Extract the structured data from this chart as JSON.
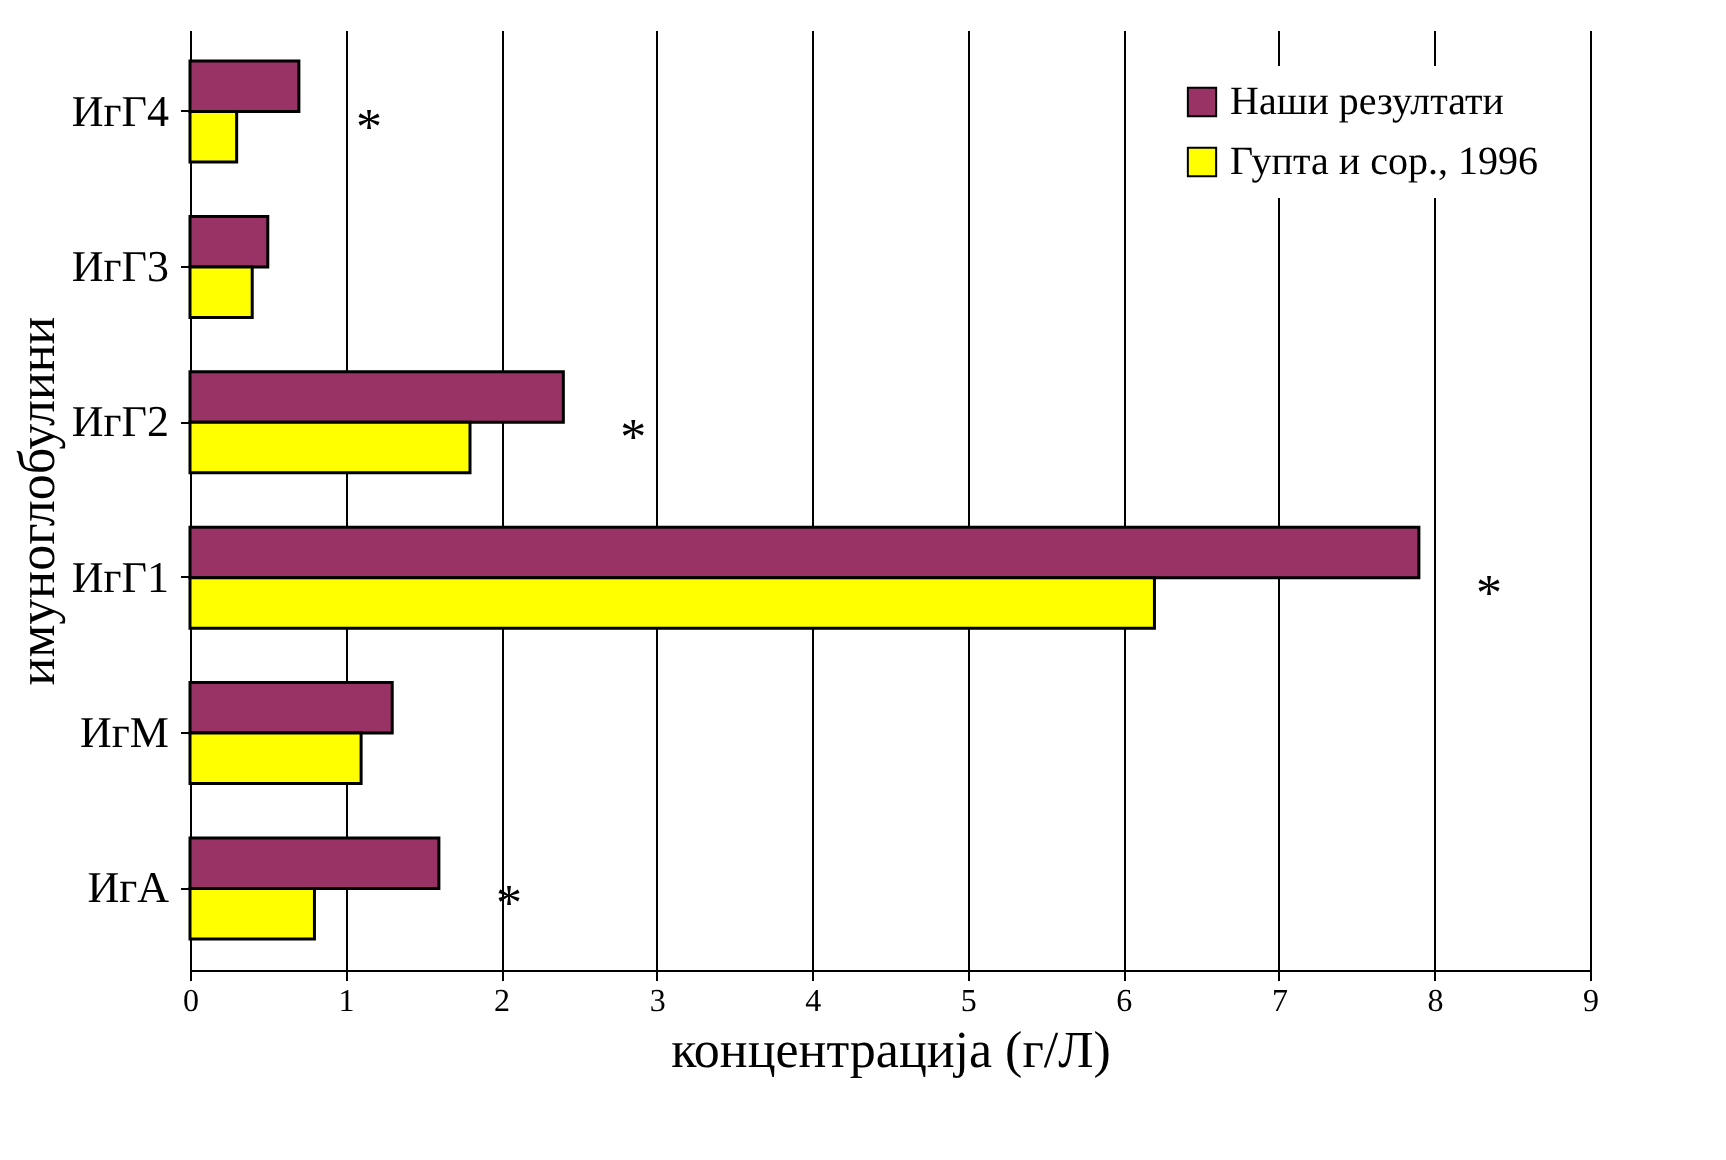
{
  "chart_data": {
    "type": "bar",
    "orientation": "horizontal",
    "xlabel": "концентрација (г/Л)",
    "ylabel": "имуноглобулини",
    "categories": [
      "ИгГ4",
      "ИгГ3",
      "ИгГ2",
      "ИгГ1",
      "ИгМ",
      "ИгА"
    ],
    "series": [
      {
        "name": "Наши резултати",
        "color": "#993366",
        "values": [
          0.7,
          0.5,
          2.4,
          7.9,
          1.3,
          1.6
        ]
      },
      {
        "name": "Гупта и сор., 1996",
        "color": "#ffff00",
        "values": [
          0.3,
          0.4,
          1.8,
          6.2,
          1.1,
          0.8
        ]
      }
    ],
    "xlim": [
      0,
      9
    ],
    "xticks": [
      0,
      1,
      2,
      3,
      4,
      5,
      6,
      7,
      8,
      9
    ],
    "grid": "x",
    "legend": "top right",
    "annotations": [
      {
        "text": "*",
        "x": 0.7,
        "y": "ИгГ4"
      },
      {
        "text": "*",
        "x": 2.4,
        "y": "ИгГ2"
      },
      {
        "text": "*",
        "x": 7.9,
        "y": "ИгГ1"
      },
      {
        "text": "*",
        "x": 1.6,
        "y": "ИгА"
      }
    ]
  }
}
